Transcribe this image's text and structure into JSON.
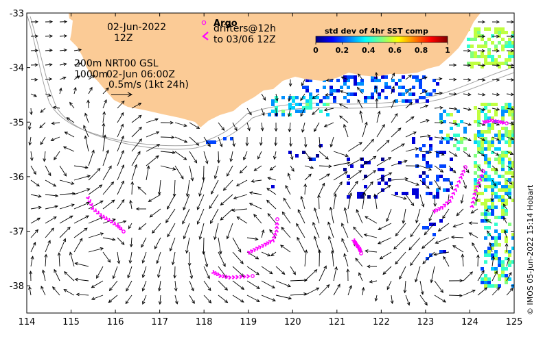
{
  "map": {
    "lon_range": [
      114,
      125
    ],
    "lat_range": [
      -38.5,
      -33
    ],
    "x_ticks": [
      114,
      115,
      116,
      117,
      118,
      119,
      120,
      121,
      122,
      123,
      124,
      125
    ],
    "y_ticks": [
      -33,
      -34,
      -35,
      -36,
      -37,
      -38
    ],
    "land_color": "#fbcb96",
    "current_arrow_color": "#000000",
    "drifter_color": "#ff00ff",
    "contour_color": "#a0a0a0"
  },
  "annotations": {
    "date": "02-Jun-2022",
    "time": "12Z",
    "depth_200": "200m",
    "depth_1000": "1000m",
    "product": "NRT00 GSL",
    "analysis_time": "02-Jun 06:00Z",
    "scale": "0.5m/s (1kt 24h)",
    "argo_label": "Argo",
    "drifters_line1": "drifters@12h",
    "drifters_line2": "to 03/06 12Z"
  },
  "colorbar": {
    "title": "std dev of 4hr SST comp",
    "ticks": [
      "0",
      "0.2",
      "0.4",
      "0.6",
      "0.8",
      "1"
    ],
    "colors": [
      "#00007f",
      "#0000ff",
      "#007fff",
      "#00ffff",
      "#7fff7f",
      "#ffff00",
      "#ff7f00",
      "#ff0000",
      "#7f0000"
    ]
  },
  "credit": "© IMOS 05-Jun-2022 15:14 Hobart"
}
